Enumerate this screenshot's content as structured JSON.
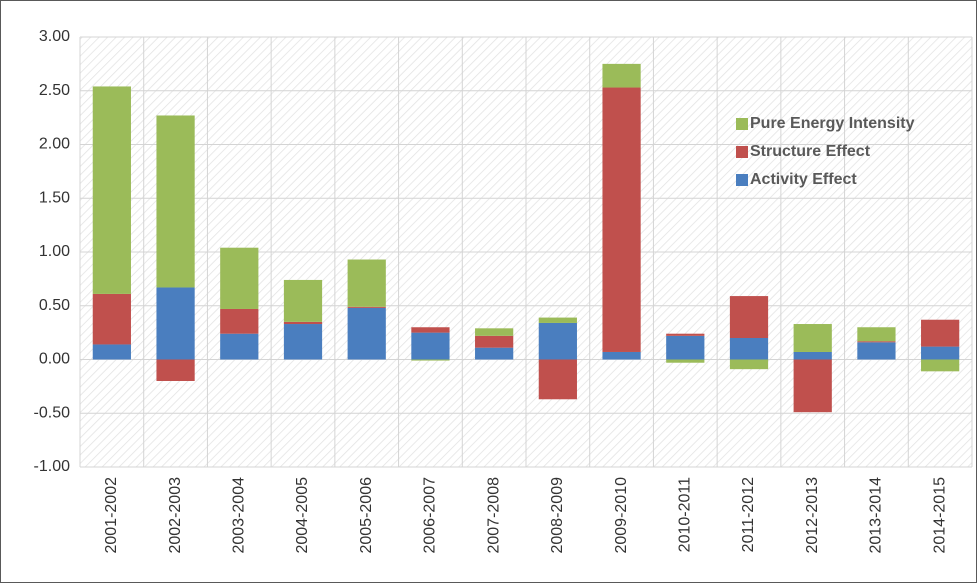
{
  "chart_data": {
    "type": "stacked_bar",
    "categories": [
      "2001-2002",
      "2002-2003",
      "2003-2004",
      "2004-2005",
      "2005-2006",
      "2006-2007",
      "2007-2008",
      "2008-2009",
      "2009-2010",
      "2010-2011",
      "2011-2012",
      "2012-2013",
      "2013-2014",
      "2014-2015"
    ],
    "series": [
      {
        "name": "Activity Effect",
        "color": "#4a7ebf",
        "values": [
          0.14,
          0.67,
          0.24,
          0.33,
          0.48,
          0.25,
          0.11,
          0.34,
          0.07,
          0.22,
          0.2,
          0.07,
          0.16,
          0.12
        ]
      },
      {
        "name": "Structure Effect",
        "color": "#c0504d",
        "values": [
          0.47,
          -0.2,
          0.23,
          0.02,
          0.01,
          0.05,
          0.11,
          -0.37,
          2.46,
          0.02,
          0.39,
          -0.49,
          0.01,
          0.25
        ]
      },
      {
        "name": "Pure Energy Intensity",
        "color": "#9bbb59",
        "values": [
          1.93,
          1.6,
          0.57,
          0.39,
          0.44,
          -0.01,
          0.07,
          0.05,
          0.22,
          -0.03,
          -0.09,
          0.26,
          0.13,
          -0.11
        ]
      }
    ],
    "ylim": [
      -1,
      3
    ],
    "yticks": [
      {
        "value": -1,
        "label": "-1.00"
      },
      {
        "value": -0.5,
        "label": "-0.50"
      },
      {
        "value": 0,
        "label": "0.00"
      },
      {
        "value": 0.5,
        "label": "0.50"
      },
      {
        "value": 1,
        "label": "1.00"
      },
      {
        "value": 1.5,
        "label": "1.50"
      },
      {
        "value": 2,
        "label": "2.00"
      },
      {
        "value": 2.5,
        "label": "2.50"
      },
      {
        "value": 3,
        "label": "3.00"
      }
    ],
    "grid": true,
    "legend": "upper right"
  }
}
